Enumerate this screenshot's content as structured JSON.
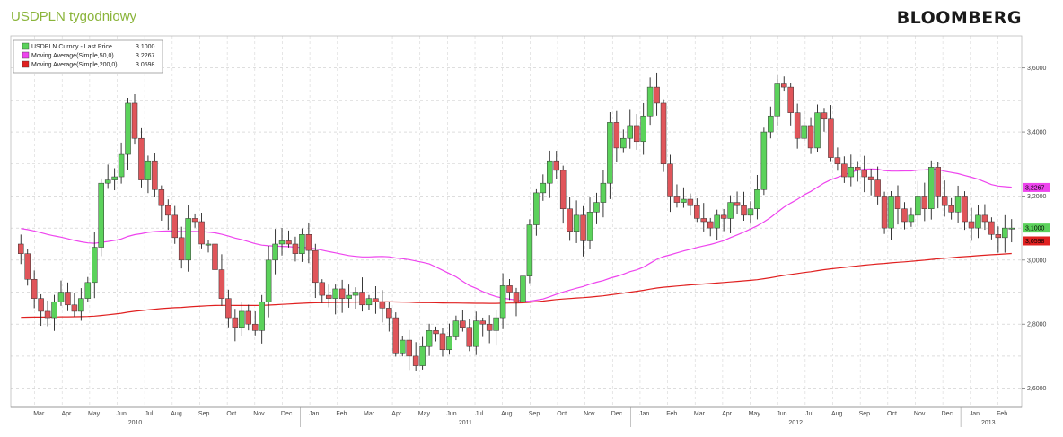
{
  "header": {
    "title": "USDPLN tygodniowy",
    "brand": "BLOOMBERG"
  },
  "colors": {
    "up": "#5bd25b",
    "down": "#e0555a",
    "ma50": "#ee44ee",
    "ma200": "#e02020",
    "title": "#8ab43a"
  },
  "chart_data": {
    "type": "candlestick",
    "title": "USDPLN tygodniowy",
    "ylim": [
      2.54,
      3.7
    ],
    "y_ticks": [
      2.6,
      2.8,
      3.0,
      3.2,
      3.4,
      3.6
    ],
    "y_tick_labels": [
      "2,6000",
      "2,8000",
      "3,0000",
      "3,2000",
      "3,4000",
      "3,6000"
    ],
    "grid": true,
    "legend_position": "top-left",
    "legend": [
      {
        "label": "USDPLN Curncy - Last Price",
        "value": "3.1000",
        "color": "#5bd25b"
      },
      {
        "label": "Moving Average(Simple,50,0)",
        "value": "3.2267",
        "color": "#ee44ee"
      },
      {
        "label": "Moving Average(Simple,200,0)",
        "value": "3.0598",
        "color": "#e02020"
      }
    ],
    "last_value_tags": [
      {
        "label": "3,2267",
        "value": 3.2267,
        "color": "#ee44ee"
      },
      {
        "label": "3,1000",
        "value": 3.1,
        "color": "#5bd25b"
      },
      {
        "label": "3,0598",
        "value": 3.0598,
        "color": "#e02020"
      }
    ],
    "x_month_labels": [
      "Mar",
      "Apr",
      "May",
      "Jun",
      "Jul",
      "Aug",
      "Sep",
      "Oct",
      "Nov",
      "Dec",
      "Jan",
      "Feb",
      "Mar",
      "Apr",
      "May",
      "Jun",
      "Jul",
      "Aug",
      "Sep",
      "Oct",
      "Nov",
      "Dec",
      "Jan",
      "Feb",
      "Mar",
      "Apr",
      "May",
      "Jun",
      "Jul",
      "Aug",
      "Sep",
      "Oct",
      "Nov",
      "Dec",
      "Jan",
      "Feb"
    ],
    "x_year_labels": [
      {
        "label": "2010",
        "after_month_index": 3
      },
      {
        "label": "2011",
        "after_month_index": 15
      },
      {
        "label": "2012",
        "after_month_index": 27
      },
      {
        "label": "2013",
        "after_month_index": 34
      }
    ],
    "close": [
      3.02,
      2.94,
      2.88,
      2.84,
      2.82,
      2.87,
      2.9,
      2.86,
      2.84,
      2.88,
      2.93,
      3.04,
      3.24,
      3.25,
      3.26,
      3.33,
      3.49,
      3.38,
      3.25,
      3.31,
      3.22,
      3.17,
      3.14,
      3.07,
      3.0,
      3.13,
      3.12,
      3.05,
      3.05,
      2.97,
      2.88,
      2.82,
      2.79,
      2.84,
      2.8,
      2.78,
      2.87,
      3.0,
      3.05,
      3.06,
      3.05,
      3.02,
      3.08,
      3.03,
      2.93,
      2.89,
      2.88,
      2.91,
      2.88,
      2.89,
      2.9,
      2.86,
      2.88,
      2.87,
      2.85,
      2.82,
      2.71,
      2.75,
      2.7,
      2.67,
      2.73,
      2.78,
      2.77,
      2.72,
      2.76,
      2.81,
      2.79,
      2.73,
      2.81,
      2.8,
      2.78,
      2.82,
      2.92,
      2.9,
      2.87,
      2.95,
      3.11,
      3.21,
      3.24,
      3.31,
      3.28,
      3.16,
      3.09,
      3.14,
      3.06,
      3.15,
      3.18,
      3.24,
      3.43,
      3.35,
      3.38,
      3.42,
      3.37,
      3.45,
      3.54,
      3.49,
      3.3,
      3.2,
      3.18,
      3.19,
      3.17,
      3.13,
      3.12,
      3.1,
      3.14,
      3.13,
      3.18,
      3.17,
      3.14,
      3.16,
      3.22,
      3.4,
      3.45,
      3.55,
      3.54,
      3.46,
      3.38,
      3.42,
      3.35,
      3.46,
      3.44,
      3.32,
      3.3,
      3.26,
      3.29,
      3.28,
      3.26,
      3.25,
      3.2,
      3.1,
      3.2,
      3.16,
      3.12,
      3.14,
      3.2,
      3.16,
      3.29,
      3.2,
      3.17,
      3.15,
      3.2,
      3.12,
      3.1,
      3.14,
      3.12,
      3.08,
      3.07,
      3.1,
      3.1
    ],
    "last_price": 3.1,
    "ma50_last": 3.2267,
    "ma200_last": 3.0598
  }
}
